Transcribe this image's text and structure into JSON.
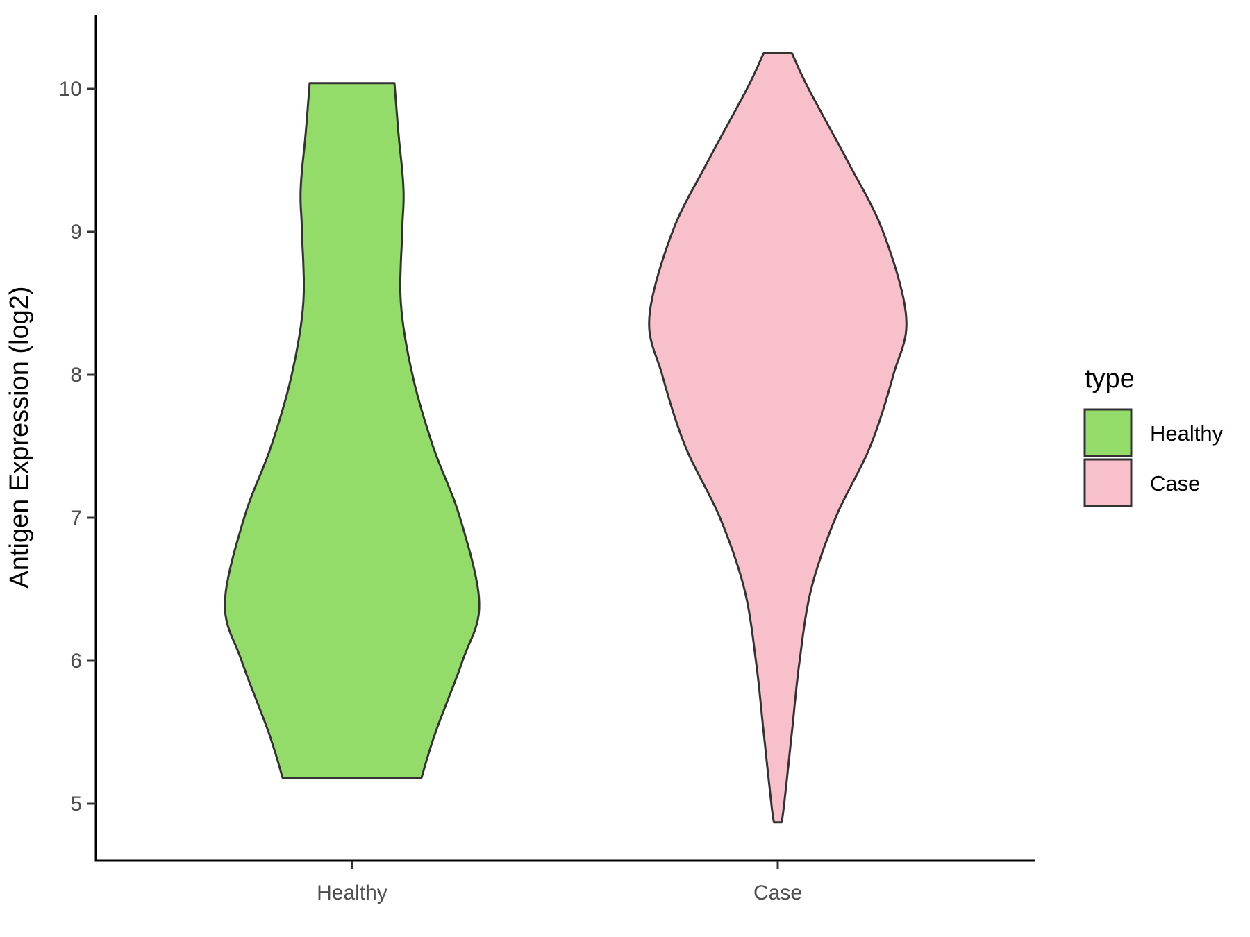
{
  "chart_data": {
    "type": "violin",
    "title": "",
    "xlabel": "",
    "ylabel": "Antigen Expression (log2)",
    "ylim": [
      4.6,
      10.5
    ],
    "yticks": [
      5,
      6,
      7,
      8,
      9,
      10
    ],
    "categories": [
      "Healthy",
      "Case"
    ],
    "grid": false,
    "legend": {
      "title": "type",
      "position": "right",
      "entries": [
        {
          "label": "Healthy",
          "color": "#93dc6a"
        },
        {
          "label": "Case",
          "color": "#f8c0ca"
        }
      ]
    },
    "series": [
      {
        "name": "Healthy",
        "color": "#93dc6a",
        "min": 5.18,
        "max": 10.04,
        "density_profile": [
          [
            5.18,
            0.54
          ],
          [
            5.5,
            0.65
          ],
          [
            6.0,
            0.86
          ],
          [
            6.4,
            0.99
          ],
          [
            7.0,
            0.84
          ],
          [
            7.5,
            0.63
          ],
          [
            8.0,
            0.47
          ],
          [
            8.5,
            0.38
          ],
          [
            9.0,
            0.39
          ],
          [
            9.3,
            0.4
          ],
          [
            9.7,
            0.36
          ],
          [
            10.04,
            0.33
          ]
        ]
      },
      {
        "name": "Case",
        "color": "#f8c0ca",
        "min": 4.87,
        "max": 10.25,
        "density_profile": [
          [
            4.87,
            0.03
          ],
          [
            5.0,
            0.05
          ],
          [
            5.5,
            0.11
          ],
          [
            6.0,
            0.17
          ],
          [
            6.5,
            0.26
          ],
          [
            7.0,
            0.45
          ],
          [
            7.5,
            0.72
          ],
          [
            8.0,
            0.9
          ],
          [
            8.4,
            1.0
          ],
          [
            9.0,
            0.82
          ],
          [
            9.5,
            0.54
          ],
          [
            10.0,
            0.24
          ],
          [
            10.25,
            0.11
          ]
        ]
      }
    ]
  }
}
